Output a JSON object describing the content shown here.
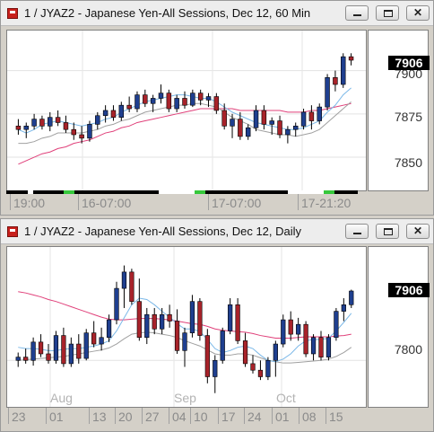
{
  "windows": [
    {
      "id": "hourly",
      "title": "1 / JYAZ2 - Japanese Yen-All Sessions, Dec 12, 60 Min",
      "yaxis_labels": [
        "7900",
        "7875",
        "7850"
      ],
      "price_tag": "7906",
      "xaxis_labels": [
        "19:00",
        "16-07:00",
        "17-07:00",
        "17-21:20"
      ],
      "chart_data": {
        "type": "candlestick",
        "ylim": [
          7835,
          7920
        ],
        "yticks": [
          7900,
          7875,
          7850
        ],
        "last_price": 7906,
        "candles": [
          [
            7868,
            7872,
            7863,
            7866
          ],
          [
            7866,
            7870,
            7861,
            7868
          ],
          [
            7868,
            7875,
            7866,
            7872
          ],
          [
            7872,
            7874,
            7866,
            7868
          ],
          [
            7868,
            7876,
            7865,
            7873
          ],
          [
            7873,
            7877,
            7868,
            7870
          ],
          [
            7870,
            7874,
            7864,
            7866
          ],
          [
            7866,
            7870,
            7860,
            7863
          ],
          [
            7863,
            7868,
            7858,
            7861
          ],
          [
            7861,
            7871,
            7859,
            7869
          ],
          [
            7869,
            7876,
            7866,
            7874
          ],
          [
            7874,
            7880,
            7870,
            7877
          ],
          [
            7877,
            7880,
            7871,
            7873
          ],
          [
            7873,
            7882,
            7871,
            7880
          ],
          [
            7880,
            7885,
            7876,
            7878
          ],
          [
            7878,
            7888,
            7876,
            7886
          ],
          [
            7886,
            7889,
            7879,
            7881
          ],
          [
            7881,
            7886,
            7876,
            7884
          ],
          [
            7884,
            7892,
            7881,
            7887
          ],
          [
            7887,
            7889,
            7876,
            7878
          ],
          [
            7878,
            7886,
            7876,
            7884
          ],
          [
            7884,
            7888,
            7878,
            7880
          ],
          [
            7880,
            7889,
            7879,
            7887
          ],
          [
            7887,
            7889,
            7880,
            7883
          ],
          [
            7883,
            7887,
            7879,
            7885
          ],
          [
            7885,
            7887,
            7875,
            7877
          ],
          [
            7877,
            7881,
            7866,
            7868
          ],
          [
            7868,
            7875,
            7861,
            7872
          ],
          [
            7872,
            7876,
            7860,
            7862
          ],
          [
            7862,
            7869,
            7860,
            7867
          ],
          [
            7867,
            7880,
            7865,
            7877
          ],
          [
            7877,
            7880,
            7866,
            7869
          ],
          [
            7869,
            7873,
            7863,
            7871
          ],
          [
            7871,
            7874,
            7861,
            7863
          ],
          [
            7863,
            7868,
            7858,
            7866
          ],
          [
            7866,
            7870,
            7862,
            7868
          ],
          [
            7868,
            7878,
            7866,
            7876
          ],
          [
            7876,
            7880,
            7866,
            7871
          ],
          [
            7871,
            7881,
            7869,
            7879
          ],
          [
            7879,
            7898,
            7877,
            7896
          ],
          [
            7896,
            7900,
            7888,
            7892
          ],
          [
            7892,
            7910,
            7890,
            7908
          ],
          [
            7908,
            7910,
            7903,
            7906
          ]
        ],
        "ma_fast": [
          7866,
          7864,
          7866,
          7869,
          7870,
          7871,
          7870,
          7869,
          7868,
          7869,
          7870,
          7872,
          7873,
          7876,
          7878,
          7880,
          7882,
          7883,
          7884,
          7885,
          7886,
          7886,
          7885,
          7884,
          7884,
          7882,
          7879,
          7876,
          7874,
          7872,
          7870,
          7869,
          7868,
          7867,
          7866,
          7866,
          7867,
          7869,
          7871,
          7876,
          7880,
          7886,
          7890
        ],
        "ma_slow": [
          7846,
          7848,
          7850,
          7852,
          7853,
          7855,
          7856,
          7858,
          7859,
          7860,
          7862,
          7864,
          7865,
          7867,
          7868,
          7870,
          7871,
          7872,
          7873,
          7874,
          7875,
          7876,
          7877,
          7878,
          7878,
          7878,
          7878,
          7878,
          7877,
          7877,
          7877,
          7877,
          7877,
          7877,
          7876,
          7876,
          7876,
          7877,
          7877,
          7878,
          7879,
          7880,
          7881
        ],
        "ma_envelope": [
          7858,
          7858,
          7859,
          7861,
          7862,
          7864,
          7864,
          7864,
          7864,
          7865,
          7866,
          7868,
          7869,
          7871,
          7872,
          7874,
          7876,
          7877,
          7878,
          7879,
          7880,
          7880,
          7881,
          7881,
          7880,
          7879,
          7876,
          7873,
          7871,
          7869,
          7866,
          7865,
          7864,
          7863,
          7863,
          7862,
          7863,
          7864,
          7866,
          7870,
          7874,
          7878,
          7882
        ]
      }
    },
    {
      "id": "daily",
      "title": "1 / JYAZ2 - Japanese Yen-All Sessions, Dec 12, Daily",
      "yaxis_labels": [
        "7800"
      ],
      "price_tag": "7906",
      "xaxis_labels": [
        "23",
        "01",
        "13",
        "20",
        "27",
        "04",
        "10",
        "17",
        "24",
        "01",
        "08",
        "15"
      ],
      "month_labels": [
        "Aug",
        "Sep",
        "Oct"
      ],
      "chart_data": {
        "type": "candlestick",
        "ylim": [
          7740,
          7965
        ],
        "yticks": [
          7800
        ],
        "last_price": 7906,
        "candles": [
          [
            7800,
            7812,
            7790,
            7805
          ],
          [
            7805,
            7818,
            7795,
            7800
          ],
          [
            7800,
            7835,
            7792,
            7828
          ],
          [
            7828,
            7840,
            7805,
            7810
          ],
          [
            7810,
            7825,
            7795,
            7800
          ],
          [
            7800,
            7845,
            7795,
            7838
          ],
          [
            7838,
            7850,
            7790,
            7795
          ],
          [
            7795,
            7835,
            7790,
            7825
          ],
          [
            7825,
            7840,
            7795,
            7803
          ],
          [
            7803,
            7848,
            7800,
            7842
          ],
          [
            7842,
            7860,
            7820,
            7825
          ],
          [
            7825,
            7850,
            7815,
            7835
          ],
          [
            7835,
            7870,
            7828,
            7862
          ],
          [
            7862,
            7920,
            7855,
            7910
          ],
          [
            7910,
            7945,
            7880,
            7935
          ],
          [
            7935,
            7940,
            7885,
            7890
          ],
          [
            7890,
            7925,
            7830,
            7835
          ],
          [
            7835,
            7880,
            7825,
            7870
          ],
          [
            7870,
            7880,
            7840,
            7848
          ],
          [
            7848,
            7880,
            7840,
            7870
          ],
          [
            7870,
            7885,
            7850,
            7860
          ],
          [
            7860,
            7878,
            7810,
            7815
          ],
          [
            7815,
            7850,
            7790,
            7842
          ],
          [
            7842,
            7900,
            7835,
            7890
          ],
          [
            7890,
            7895,
            7830,
            7838
          ],
          [
            7838,
            7848,
            7765,
            7775
          ],
          [
            7775,
            7808,
            7750,
            7800
          ],
          [
            7800,
            7850,
            7795,
            7845
          ],
          [
            7845,
            7895,
            7840,
            7885
          ],
          [
            7885,
            7895,
            7825,
            7830
          ],
          [
            7830,
            7842,
            7790,
            7795
          ],
          [
            7795,
            7808,
            7780,
            7785
          ],
          [
            7785,
            7800,
            7770,
            7775
          ],
          [
            7775,
            7805,
            7770,
            7800
          ],
          [
            7800,
            7830,
            7775,
            7825
          ],
          [
            7825,
            7870,
            7820,
            7862
          ],
          [
            7862,
            7875,
            7830,
            7840
          ],
          [
            7840,
            7865,
            7830,
            7855
          ],
          [
            7855,
            7860,
            7805,
            7810
          ],
          [
            7810,
            7840,
            7800,
            7835
          ],
          [
            7835,
            7845,
            7800,
            7805
          ],
          [
            7805,
            7840,
            7800,
            7835
          ],
          [
            7835,
            7880,
            7830,
            7875
          ],
          [
            7875,
            7895,
            7860,
            7885
          ],
          [
            7885,
            7908,
            7880,
            7906
          ]
        ],
        "ma_fast": [
          7820,
          7818,
          7818,
          7817,
          7815,
          7815,
          7817,
          7818,
          7818,
          7820,
          7822,
          7825,
          7830,
          7845,
          7865,
          7885,
          7895,
          7893,
          7885,
          7875,
          7866,
          7856,
          7848,
          7848,
          7844,
          7832,
          7818,
          7812,
          7815,
          7820,
          7822,
          7818,
          7808,
          7800,
          7798,
          7802,
          7810,
          7822,
          7830,
          7832,
          7832,
          7834,
          7845,
          7858,
          7872
        ],
        "ma_slow": [
          7905,
          7903,
          7900,
          7897,
          7893,
          7890,
          7886,
          7882,
          7878,
          7874,
          7870,
          7866,
          7863,
          7862,
          7862,
          7863,
          7864,
          7864,
          7864,
          7863,
          7862,
          7860,
          7858,
          7856,
          7855,
          7852,
          7848,
          7846,
          7845,
          7844,
          7843,
          7841,
          7838,
          7836,
          7834,
          7834,
          7834,
          7835,
          7836,
          7836,
          7836,
          7836,
          7837,
          7838,
          7840
        ],
        "ma_envelope": [
          7800,
          7801,
          7802,
          7803,
          7804,
          7805,
          7806,
          7808,
          7810,
          7812,
          7814,
          7816,
          7819,
          7825,
          7833,
          7840,
          7842,
          7843,
          7842,
          7840,
          7838,
          7835,
          7830,
          7826,
          7822,
          7816,
          7810,
          7808,
          7808,
          7810,
          7810,
          7808,
          7804,
          7800,
          7798,
          7796,
          7796,
          7797,
          7798,
          7799,
          7800,
          7802,
          7806,
          7812,
          7820
        ]
      }
    }
  ]
}
